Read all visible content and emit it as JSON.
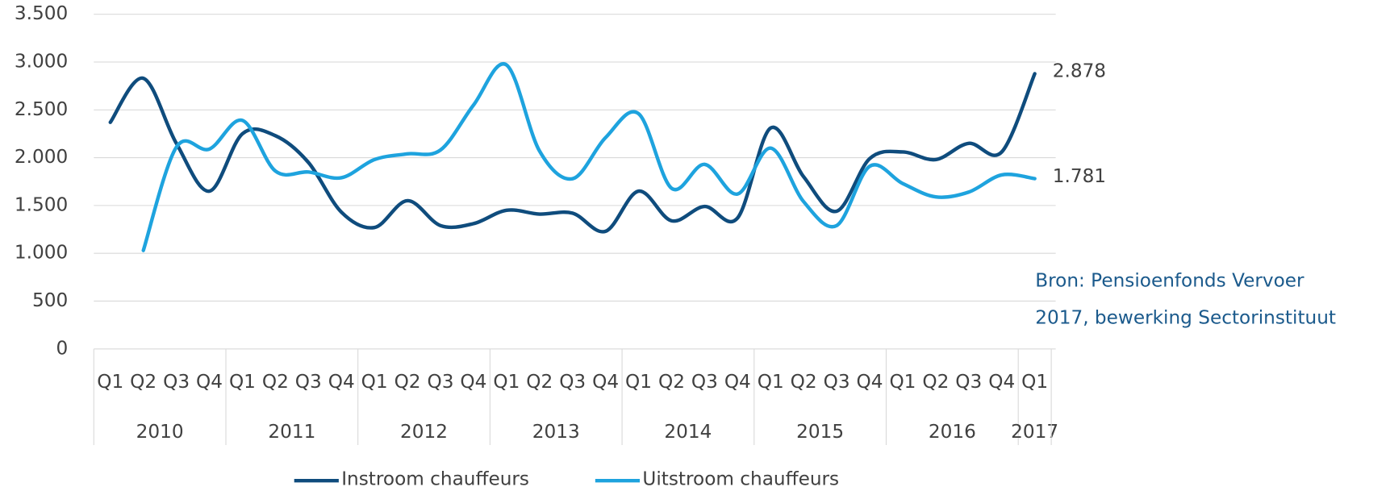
{
  "chart_data": {
    "type": "line",
    "groups": [
      {
        "label": "2010",
        "quarters": [
          "Q1",
          "Q2",
          "Q3",
          "Q4"
        ]
      },
      {
        "label": "2011",
        "quarters": [
          "Q1",
          "Q2",
          "Q3",
          "Q4"
        ]
      },
      {
        "label": "2012",
        "quarters": [
          "Q1",
          "Q2",
          "Q3",
          "Q4"
        ]
      },
      {
        "label": "2013",
        "quarters": [
          "Q1",
          "Q2",
          "Q3",
          "Q4"
        ]
      },
      {
        "label": "2014",
        "quarters": [
          "Q1",
          "Q2",
          "Q3",
          "Q4"
        ]
      },
      {
        "label": "2015",
        "quarters": [
          "Q1",
          "Q2",
          "Q3",
          "Q4"
        ]
      },
      {
        "label": "2016",
        "quarters": [
          "Q1",
          "Q2",
          "Q3",
          "Q4"
        ]
      },
      {
        "label": "2017",
        "quarters": [
          "Q1"
        ]
      }
    ],
    "series": [
      {
        "name": "Instroom chauffeurs",
        "color": "#0f4c7d",
        "values": [
          2370,
          2830,
          2150,
          1650,
          2250,
          2230,
          1950,
          1430,
          1270,
          1550,
          1290,
          1310,
          1450,
          1410,
          1420,
          1230,
          1650,
          1340,
          1490,
          1370,
          2310,
          1800,
          1440,
          1990,
          2060,
          1980,
          2150,
          2060,
          2878
        ],
        "value_labels": [
          null,
          null,
          null,
          null,
          null,
          null,
          null,
          null,
          null,
          null,
          null,
          null,
          null,
          null,
          null,
          null,
          null,
          null,
          null,
          null,
          null,
          null,
          null,
          null,
          null,
          null,
          null,
          null,
          "2.878"
        ]
      },
      {
        "name": "Uitstroom chauffeurs",
        "color": "#1ea3de",
        "values": [
          null,
          1030,
          2110,
          2090,
          2390,
          1860,
          1850,
          1790,
          1980,
          2040,
          2080,
          2550,
          2970,
          2070,
          1780,
          2210,
          2460,
          1680,
          1930,
          1620,
          2100,
          1540,
          1290,
          1910,
          1730,
          1590,
          1640,
          1820,
          1781
        ],
        "value_labels": [
          null,
          null,
          null,
          null,
          null,
          null,
          null,
          null,
          null,
          null,
          null,
          null,
          null,
          null,
          null,
          null,
          null,
          null,
          null,
          null,
          null,
          null,
          null,
          null,
          null,
          null,
          null,
          null,
          "1.781"
        ]
      }
    ],
    "ylim": [
      0,
      3500
    ],
    "yticks": [
      0,
      500,
      {
        "value": 1000,
        "label": "1.000"
      },
      {
        "value": 1500,
        "label": "1.500"
      },
      {
        "value": 2000,
        "label": "2.000"
      },
      {
        "value": 2500,
        "label": "2.500"
      },
      {
        "value": 3000,
        "label": "3.000"
      },
      {
        "value": 3500,
        "label": "3.500"
      }
    ],
    "grid": true,
    "legend": "bottom",
    "source": [
      "Bron: Pensioenfonds Vervoer",
      "2017, bewerking Sectorinstituut"
    ]
  }
}
